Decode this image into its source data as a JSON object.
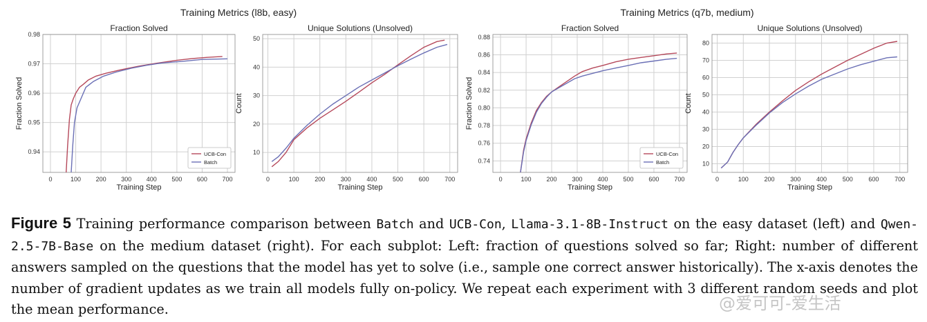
{
  "groups": [
    {
      "title": "Training Metrics (l8b, easy)"
    },
    {
      "title": "Training Metrics (q7b, medium)"
    }
  ],
  "colors": {
    "UCB-Con": "#b5485a",
    "Batch": "#6a6fb5",
    "grid": "#d0d0d0",
    "axis": "#888888"
  },
  "chart_data": [
    {
      "type": "line",
      "title": "Fraction Solved",
      "xlabel": "Training Step",
      "ylabel": "Fraction Solved",
      "xlim": [
        -30,
        730
      ],
      "ylim": [
        0.933,
        0.98
      ],
      "xticks": [
        0,
        100,
        200,
        300,
        400,
        500,
        600,
        700
      ],
      "yticks": [
        0.94,
        0.95,
        0.96,
        0.97,
        0.98
      ],
      "yticklabels": [
        "0.94",
        "0.95",
        "0.96",
        "0.97",
        "0.98"
      ],
      "grid": true,
      "legend": "bottom-right",
      "series": [
        {
          "name": "UCB-Con",
          "x": [
            62,
            68,
            75,
            82,
            90,
            100,
            115,
            130,
            150,
            180,
            220,
            280,
            350,
            420,
            500,
            560,
            620,
            680
          ],
          "y": [
            0.933,
            0.942,
            0.951,
            0.956,
            0.958,
            0.96,
            0.962,
            0.963,
            0.9645,
            0.9658,
            0.9668,
            0.968,
            0.9692,
            0.9702,
            0.9712,
            0.9718,
            0.9722,
            0.9725
          ]
        },
        {
          "name": "Batch",
          "x": [
            82,
            88,
            95,
            105,
            120,
            140,
            170,
            210,
            260,
            320,
            380,
            440,
            520,
            600,
            700
          ],
          "y": [
            0.933,
            0.942,
            0.95,
            0.955,
            0.958,
            0.962,
            0.964,
            0.9658,
            0.9672,
            0.9685,
            0.9695,
            0.9703,
            0.9708,
            0.9715,
            0.9717
          ]
        }
      ]
    },
    {
      "type": "line",
      "title": "Unique Solutions (Unsolved)",
      "xlabel": "Training Step",
      "ylabel": "Count",
      "xlim": [
        -20,
        730
      ],
      "ylim": [
        3,
        51.5
      ],
      "xticks": [
        0,
        100,
        200,
        300,
        400,
        500,
        600,
        700
      ],
      "yticks": [
        10,
        20,
        30,
        40,
        50
      ],
      "yticklabels": [
        "10",
        "20",
        "30",
        "40",
        "50"
      ],
      "grid": true,
      "legend": "",
      "series": [
        {
          "name": "UCB-Con",
          "x": [
            15,
            40,
            70,
            100,
            150,
            200,
            250,
            300,
            350,
            400,
            450,
            500,
            550,
            600,
            650,
            680
          ],
          "y": [
            5.0,
            6.8,
            10.0,
            14.5,
            18.6,
            22.0,
            25.0,
            28.0,
            31.2,
            34.5,
            37.5,
            40.8,
            44.0,
            47.0,
            49.0,
            49.5
          ]
        },
        {
          "name": "Batch",
          "x": [
            15,
            40,
            70,
            100,
            150,
            200,
            250,
            300,
            350,
            400,
            450,
            500,
            550,
            600,
            650,
            690
          ],
          "y": [
            6.8,
            8.5,
            11.5,
            15.0,
            19.5,
            23.5,
            27.0,
            30.0,
            33.0,
            35.5,
            38.0,
            40.5,
            42.8,
            45.0,
            47.0,
            48.0
          ]
        }
      ]
    },
    {
      "type": "line",
      "title": "Fraction Solved",
      "xlabel": "Training Step",
      "ylabel": "Fraction Solved",
      "xlim": [
        -30,
        730
      ],
      "ylim": [
        0.727,
        0.883
      ],
      "xticks": [
        0,
        100,
        200,
        300,
        400,
        500,
        600,
        700
      ],
      "yticks": [
        0.74,
        0.76,
        0.78,
        0.8,
        0.82,
        0.84,
        0.86,
        0.88
      ],
      "yticklabels": [
        "0.74",
        "0.76",
        "0.78",
        "0.80",
        "0.82",
        "0.84",
        "0.86",
        "0.88"
      ],
      "grid": true,
      "legend": "bottom-right",
      "series": [
        {
          "name": "UCB-Con",
          "x": [
            78,
            90,
            100,
            120,
            140,
            160,
            180,
            200,
            230,
            260,
            290,
            320,
            360,
            400,
            450,
            500,
            550,
            600,
            650,
            690
          ],
          "y": [
            0.727,
            0.752,
            0.765,
            0.783,
            0.797,
            0.806,
            0.813,
            0.818,
            0.824,
            0.83,
            0.836,
            0.841,
            0.845,
            0.848,
            0.852,
            0.855,
            0.857,
            0.859,
            0.861,
            0.862
          ]
        },
        {
          "name": "Batch",
          "x": [
            78,
            90,
            100,
            120,
            140,
            160,
            180,
            200,
            230,
            260,
            290,
            320,
            360,
            400,
            450,
            500,
            550,
            600,
            650,
            690
          ],
          "y": [
            0.727,
            0.75,
            0.763,
            0.781,
            0.795,
            0.805,
            0.812,
            0.818,
            0.823,
            0.828,
            0.833,
            0.836,
            0.839,
            0.842,
            0.845,
            0.848,
            0.851,
            0.853,
            0.855,
            0.856
          ]
        }
      ]
    },
    {
      "type": "line",
      "title": "Unique Solutions (Unsolved)",
      "xlabel": "Training Step",
      "ylabel": "Count",
      "xlim": [
        -20,
        730
      ],
      "ylim": [
        5,
        85
      ],
      "xticks": [
        0,
        100,
        200,
        300,
        400,
        500,
        600,
        700
      ],
      "yticks": [
        10,
        20,
        30,
        40,
        50,
        60,
        70,
        80
      ],
      "yticklabels": [
        "10",
        "20",
        "30",
        "40",
        "50",
        "60",
        "70",
        "80"
      ],
      "grid": true,
      "legend": "",
      "series": [
        {
          "name": "UCB-Con",
          "x": [
            15,
            40,
            60,
            80,
            100,
            150,
            200,
            250,
            300,
            350,
            400,
            450,
            500,
            550,
            600,
            650,
            690
          ],
          "y": [
            7.5,
            11.0,
            16.5,
            21.0,
            25.0,
            33.0,
            40.0,
            46.5,
            52.5,
            57.5,
            62.0,
            66.0,
            70.0,
            73.5,
            77.0,
            80.0,
            81.0
          ]
        },
        {
          "name": "Batch",
          "x": [
            15,
            40,
            60,
            80,
            100,
            150,
            200,
            250,
            300,
            350,
            400,
            450,
            500,
            550,
            600,
            650,
            690
          ],
          "y": [
            7.5,
            11.0,
            16.5,
            21.0,
            25.0,
            32.5,
            39.5,
            45.5,
            50.5,
            55.0,
            59.0,
            62.0,
            65.0,
            67.5,
            69.5,
            71.5,
            72.0
          ]
        }
      ]
    }
  ],
  "caption": {
    "label": "Figure 5",
    "t1": " Training performance comparison between ",
    "m1": "Batch",
    "t2": " and ",
    "m2": "UCB-Con",
    "t3": ", ",
    "m3": "Llama-3.1-8B-Instruct",
    "t4": " on the easy dataset (left) and ",
    "m4": "Qwen-2.5-7B-Base",
    "t5": " on the medium dataset (right). For each subplot: Left: fraction of questions solved so far; Right: number of different answers sampled on the questions that the model has yet to solve (i.e., sample one correct answer historically). The x-axis denotes the number of gradient updates as we train all models fully on-policy. We repeat each experiment with 3 different random seeds and plot the mean performance."
  },
  "watermark": "@爱可可-爱生活"
}
